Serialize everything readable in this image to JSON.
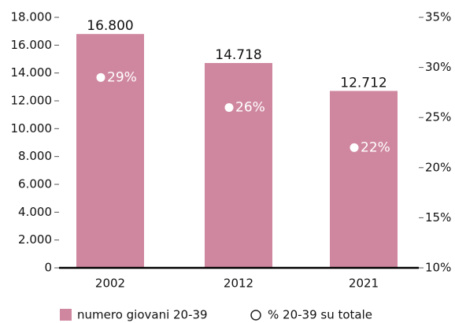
{
  "chart_data": {
    "type": "bar",
    "categories": [
      "2002",
      "2012",
      "2021"
    ],
    "series": [
      {
        "name": "numero giovani 20-39",
        "color": "#cf87a0",
        "values": [
          16800,
          14718,
          12712
        ],
        "value_labels": [
          "16.800",
          "14.718",
          "12.712"
        ]
      },
      {
        "name": "% 20-39 su totale",
        "color": "#ffffff",
        "axis": "y2",
        "values": [
          29,
          26,
          22
        ],
        "value_labels": [
          "29%",
          "26%",
          "22%"
        ]
      }
    ],
    "ylim": [
      0,
      18000
    ],
    "yticks": [
      {
        "value": 0,
        "label": "0"
      },
      {
        "value": 2000,
        "label": "2.000"
      },
      {
        "value": 4000,
        "label": "4.000"
      },
      {
        "value": 6000,
        "label": "6.000"
      },
      {
        "value": 8000,
        "label": "8.000"
      },
      {
        "value": 10000,
        "label": "10.000"
      },
      {
        "value": 12000,
        "label": "12.000"
      },
      {
        "value": 14000,
        "label": "14.000"
      },
      {
        "value": 16000,
        "label": "16.000"
      },
      {
        "value": 18000,
        "label": "18.000"
      }
    ],
    "y2lim": [
      10,
      35
    ],
    "y2ticks": [
      {
        "value": 10,
        "label": "10%"
      },
      {
        "value": 15,
        "label": "15%"
      },
      {
        "value": 20,
        "label": "20%"
      },
      {
        "value": 25,
        "label": "25%"
      },
      {
        "value": 30,
        "label": "30%"
      },
      {
        "value": 35,
        "label": "35%"
      }
    ]
  }
}
